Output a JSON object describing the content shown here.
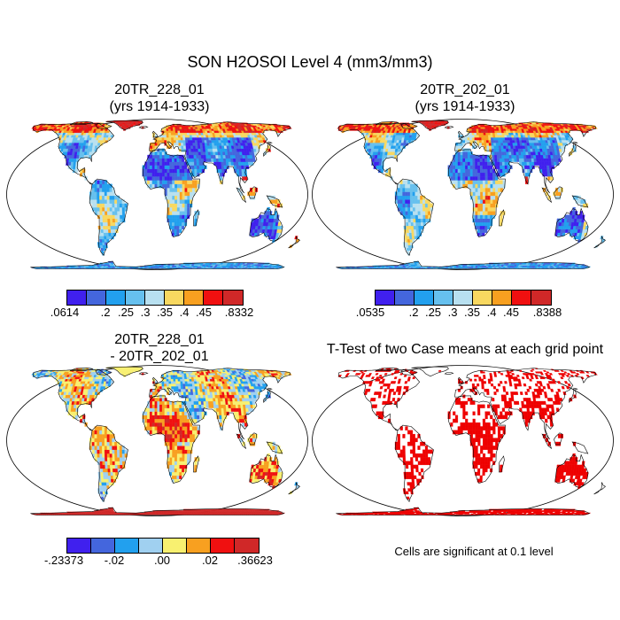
{
  "title": "SON H2OSOI Level 4 (mm3/mm3)",
  "panels": {
    "top_left": {
      "title1": "20TR_228_01",
      "title2": "(yrs 1914-1933)"
    },
    "top_right": {
      "title1": "20TR_202_01",
      "title2": "(yrs 1914-1933)"
    },
    "bottom_left": {
      "title1": "20TR_228_01",
      "title2": "- 20TR_202_01"
    },
    "bottom_right": {
      "title1": "T-Test of two Case means at each grid point"
    }
  },
  "colorbars": {
    "top_left": {
      "colors": [
        "#4020ee",
        "#4466dd",
        "#22a0ee",
        "#66c0ee",
        "#b8e0f0",
        "#f8d860",
        "#f8a020",
        "#f01010",
        "#d02828"
      ],
      "labels": [
        ".0614",
        ".2",
        ".25",
        ".3",
        ".35",
        ".4",
        ".45",
        ".8332"
      ]
    },
    "top_right": {
      "colors": [
        "#4020ee",
        "#4466dd",
        "#22a0ee",
        "#66c0ee",
        "#b8e0f0",
        "#f8d860",
        "#f8a020",
        "#f01010",
        "#d02828"
      ],
      "labels": [
        ".0535",
        ".2",
        ".25",
        ".3",
        ".35",
        ".4",
        ".45",
        ".8388"
      ]
    },
    "bottom_left": {
      "colors": [
        "#4020ee",
        "#4466dd",
        "#22a0ee",
        "#a0d0f0",
        "#f8f070",
        "#f8a020",
        "#f01010",
        "#d02828"
      ],
      "labels": [
        "-.23373",
        "-.02",
        ".00",
        ".02",
        ".36623"
      ]
    }
  },
  "note": "Cells are significant at 0.1 level",
  "colors": {
    "land": "#ffffff",
    "coast": "#000000",
    "significant": "#ee0000"
  }
}
